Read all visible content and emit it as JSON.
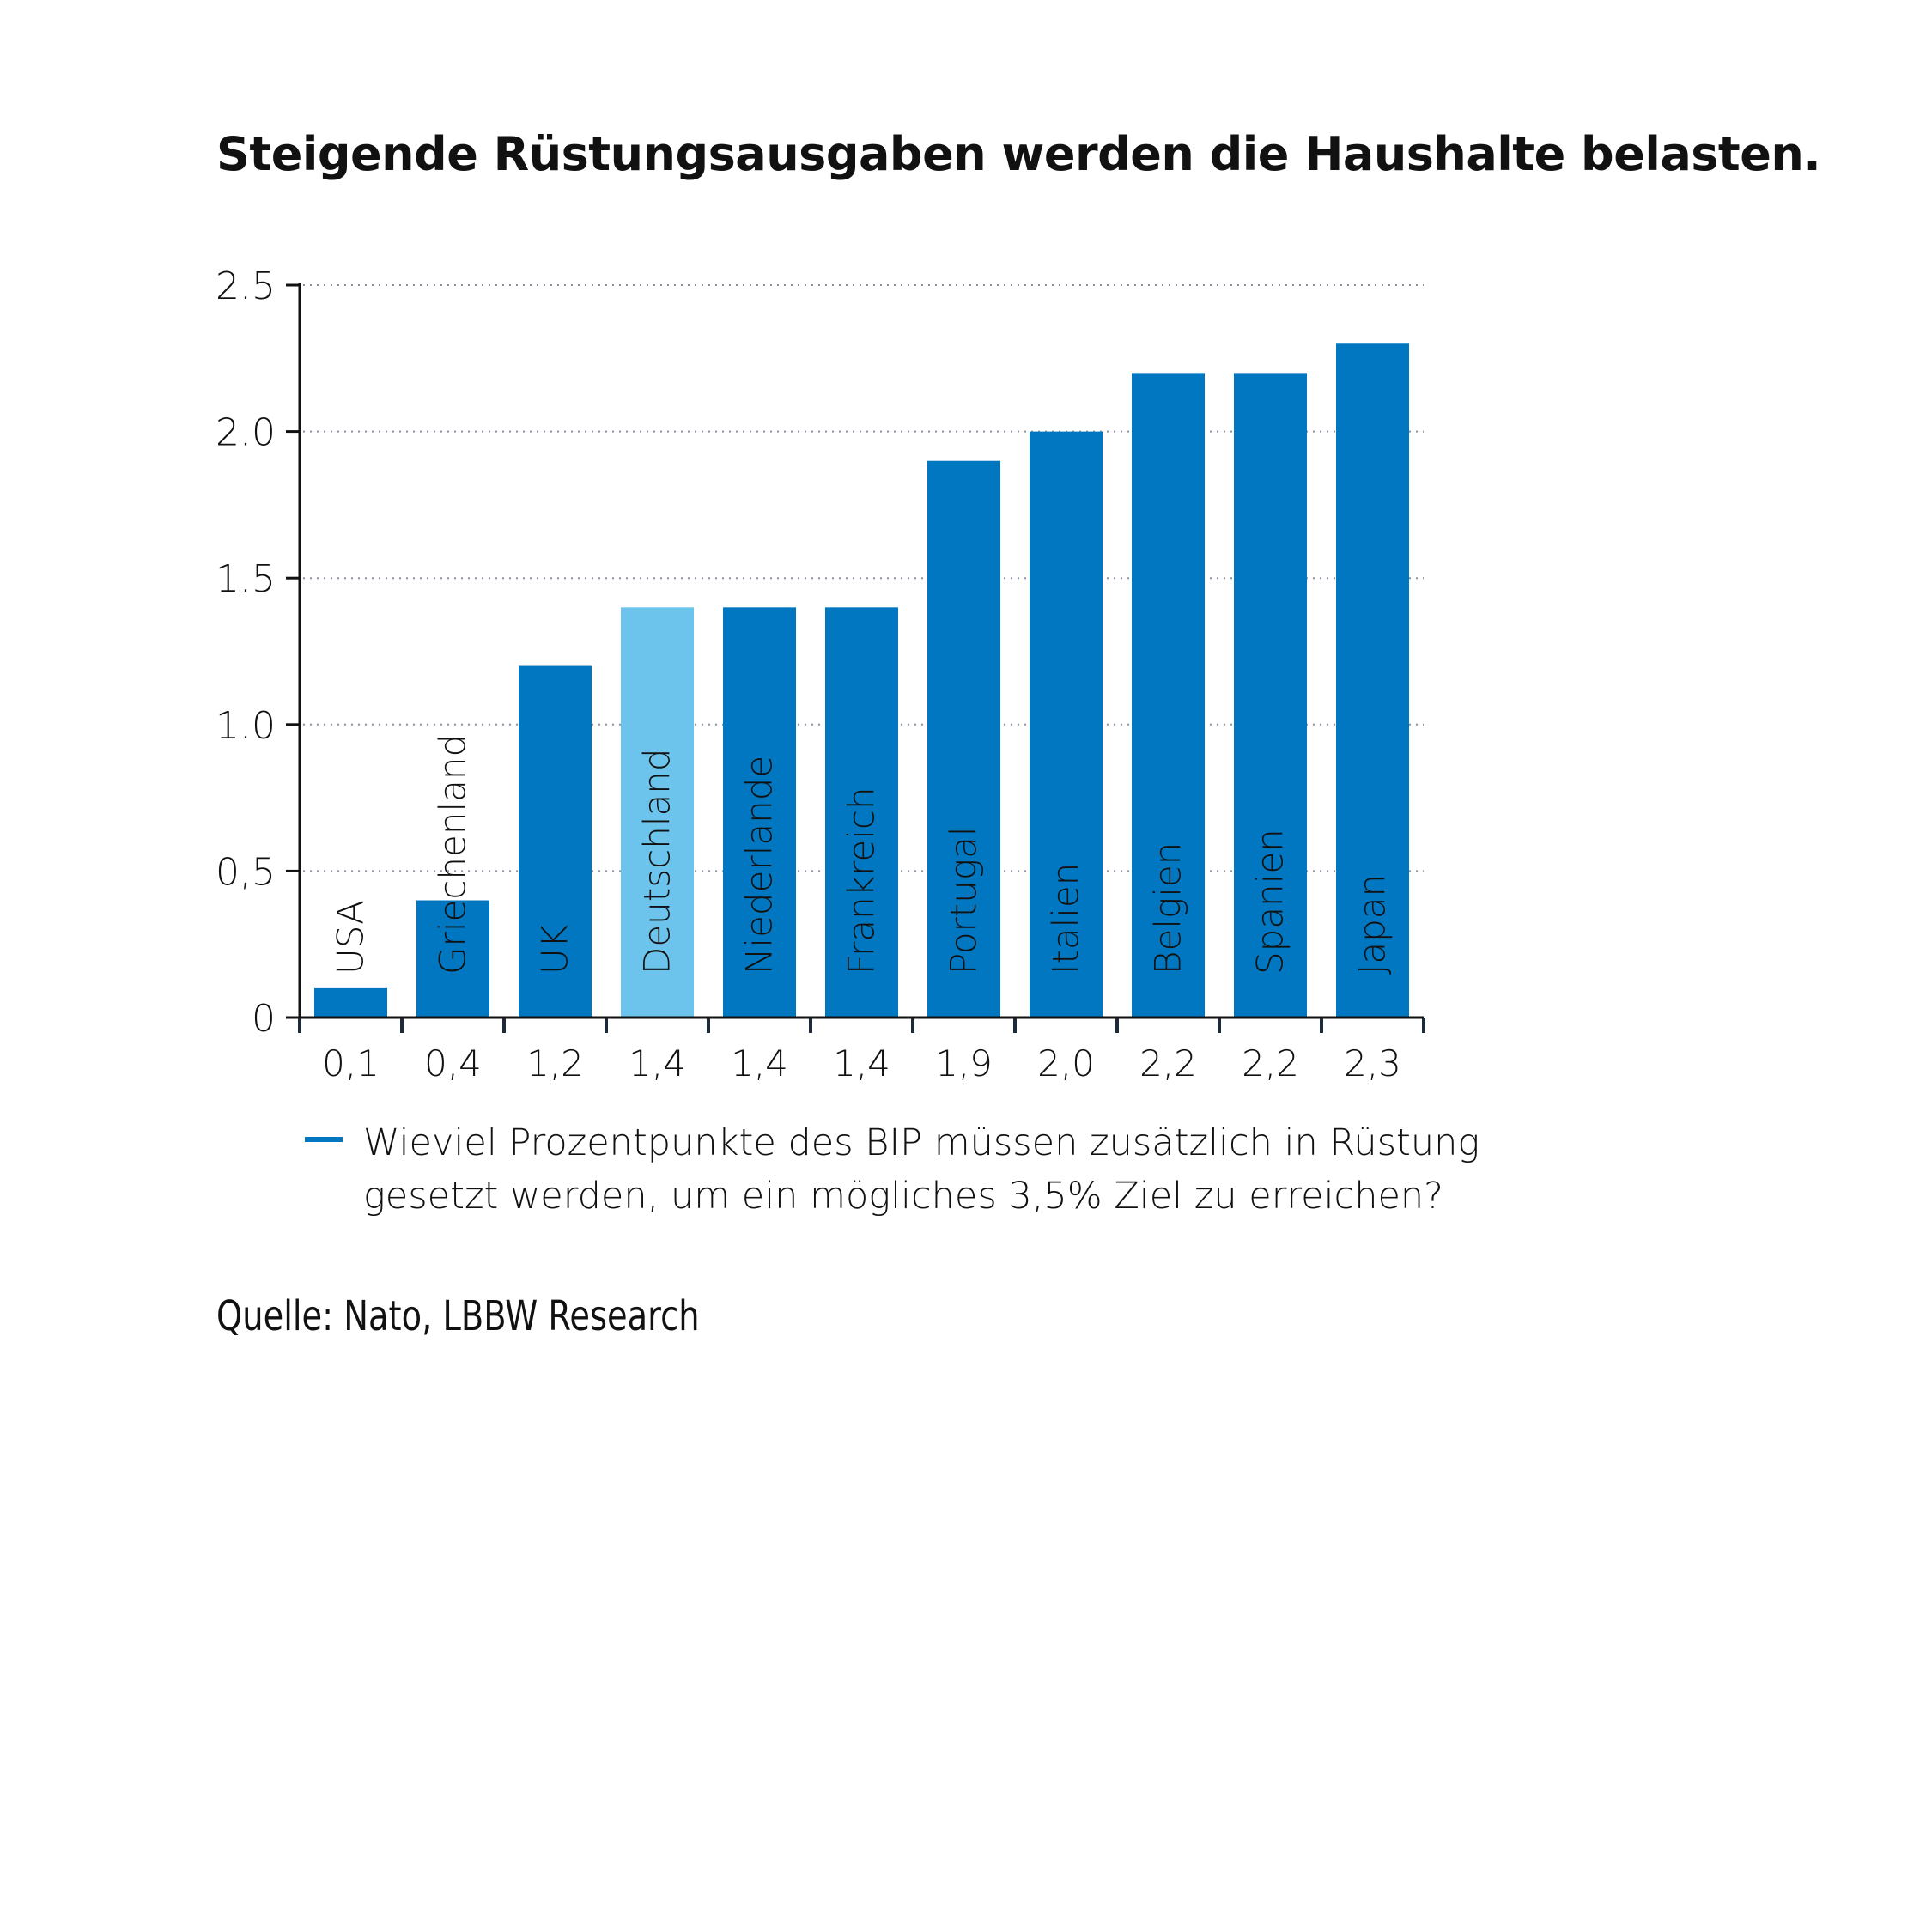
{
  "title": "Steigende Rüstungsausgaben werden die Haushalte belasten.",
  "chart_data": {
    "type": "bar",
    "categories": [
      "USA",
      "Griechenland",
      "UK",
      "Deutschland",
      "Niederlande",
      "Frankreich",
      "Portugal",
      "Italien",
      "Belgien",
      "Spanien",
      "Japan"
    ],
    "values": [
      0.1,
      0.4,
      1.2,
      1.4,
      1.4,
      1.4,
      1.9,
      2.0,
      2.2,
      2.2,
      2.3
    ],
    "value_labels": [
      "0,1",
      "0,4",
      "1,2",
      "1,4",
      "1,4",
      "1,4",
      "1,9",
      "2,0",
      "2,2",
      "2,2",
      "2,3"
    ],
    "ylim": [
      0,
      2.5
    ],
    "yticks": [
      0,
      0.5,
      1.0,
      1.5,
      2.0,
      2.5
    ],
    "ytick_labels": [
      "0",
      "0,5",
      "1.0",
      "1.5",
      "2.0",
      "2.5"
    ],
    "grid": true,
    "colors": {
      "default": "#0077c0",
      "highlight": "#6cc4ec"
    },
    "highlight_category": "Deutschland",
    "legend": {
      "position": "bottom",
      "label": "Wieviel Prozentpunkte des BIP müssen zusätzlich in Rüstung gesetzt werden, um ein mögliches 3,5% Ziel zu erreichen?"
    }
  },
  "source": "Quelle: Nato, LBBW Research"
}
